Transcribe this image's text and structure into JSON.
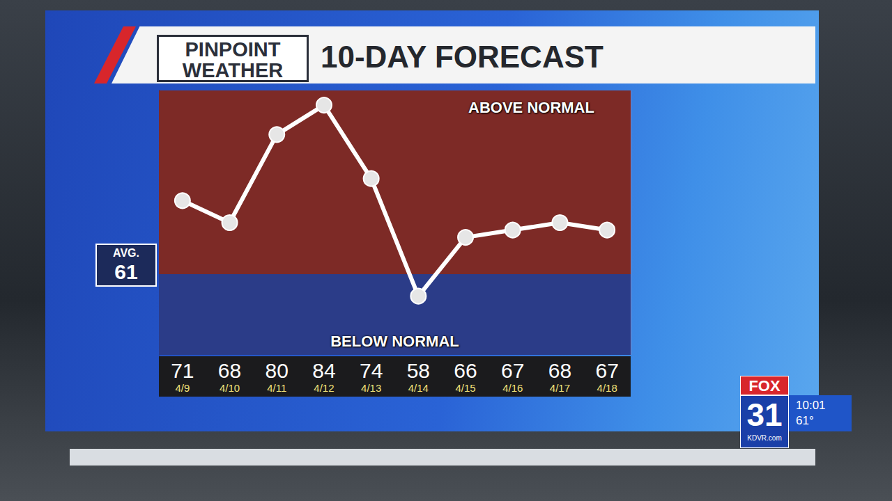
{
  "chart_data": {
    "type": "line",
    "brand": [
      "PINPOINT",
      "WEATHER"
    ],
    "title": "10-DAY FORECAST",
    "categories": [
      "4/9",
      "4/10",
      "4/11",
      "4/12",
      "4/13",
      "4/14",
      "4/15",
      "4/16",
      "4/17",
      "4/18"
    ],
    "values": [
      71,
      68,
      80,
      84,
      74,
      58,
      66,
      67,
      68,
      67
    ],
    "ylim": [
      50,
      86
    ],
    "normal": 61,
    "normal_label": "AVG.",
    "annotations": [
      "ABOVE NORMAL",
      "BELOW NORMAL"
    ],
    "color": "#ffffff",
    "marker": "circle",
    "line_style": "solid",
    "grid": true,
    "tick_labels": "x"
  },
  "station": {
    "network": "FOX",
    "channel": "31",
    "site": "KDVR.com",
    "time": "10:01",
    "temperature": "61°"
  }
}
